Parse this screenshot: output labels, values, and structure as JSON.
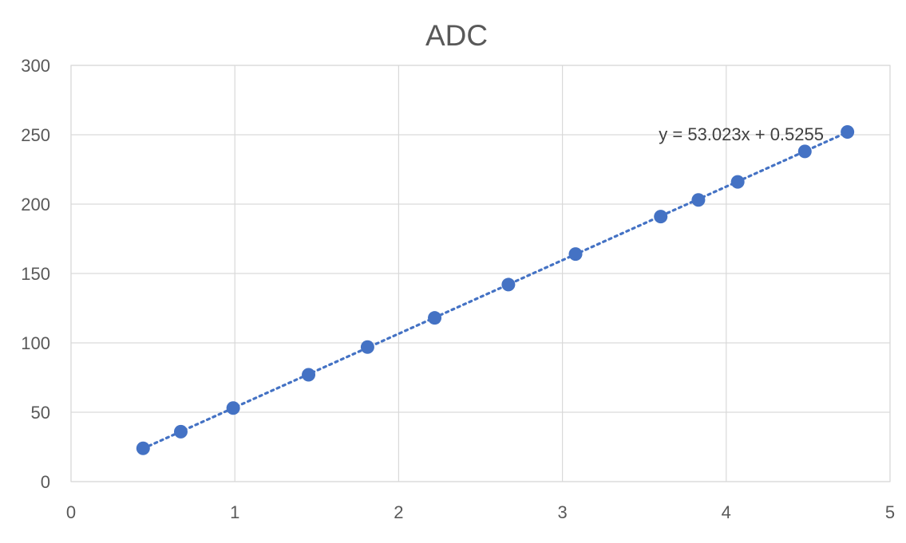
{
  "chart_data": {
    "type": "scatter",
    "title": "ADC",
    "xlabel": "",
    "ylabel": "",
    "xlim": [
      0,
      5
    ],
    "ylim": [
      0,
      300
    ],
    "xticks": [
      "0",
      "1",
      "2",
      "3",
      "4",
      "5"
    ],
    "yticks": [
      "0",
      "50",
      "100",
      "150",
      "200",
      "250",
      "300"
    ],
    "grid": true,
    "legend": "none",
    "series": [
      {
        "color": "#4472C4",
        "points": [
          {
            "x": 0.44,
            "y": 24
          },
          {
            "x": 0.67,
            "y": 36
          },
          {
            "x": 0.99,
            "y": 53
          },
          {
            "x": 1.45,
            "y": 77
          },
          {
            "x": 1.81,
            "y": 97
          },
          {
            "x": 2.22,
            "y": 118
          },
          {
            "x": 2.67,
            "y": 142
          },
          {
            "x": 3.08,
            "y": 164
          },
          {
            "x": 3.6,
            "y": 191
          },
          {
            "x": 3.83,
            "y": 203
          },
          {
            "x": 4.07,
            "y": 216
          },
          {
            "x": 4.48,
            "y": 238
          },
          {
            "x": 4.74,
            "y": 252
          }
        ]
      }
    ],
    "trendline": {
      "type": "linear",
      "slope": 53.023,
      "intercept": 0.5255,
      "x_range": [
        0.44,
        4.74
      ],
      "equation_label": "y = 53.023x + 0.5255",
      "color": "#4472C4",
      "style": "dotted"
    }
  }
}
